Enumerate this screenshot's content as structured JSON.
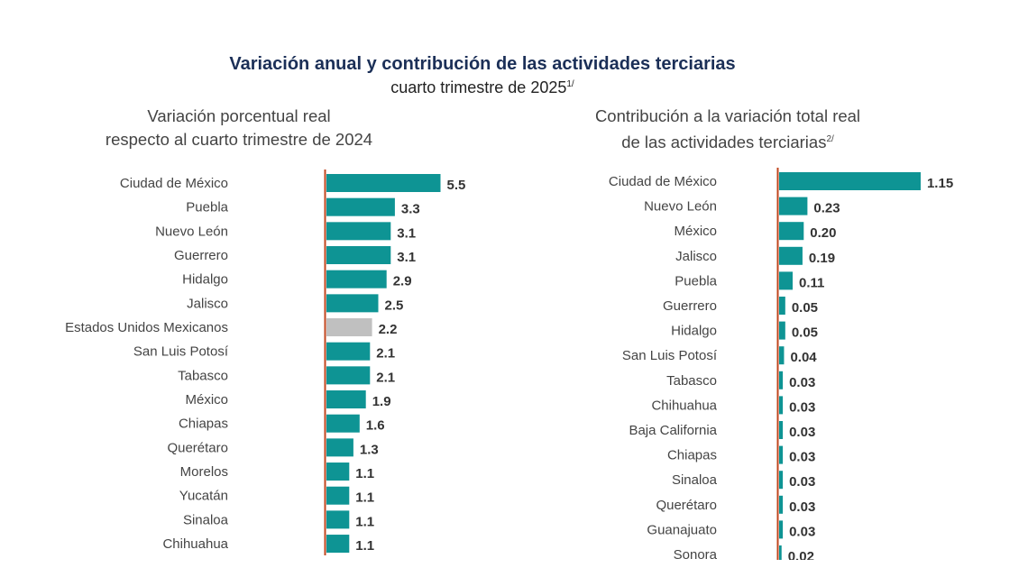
{
  "title": "Variación anual y contribución de las actividades terciarias",
  "subtitle": "cuarto trimestre de 2025",
  "subtitle_note": "1/",
  "colors": {
    "bar": "#0e9494",
    "national_bar": "#c0c0c0",
    "axis": "#c0461e",
    "title": "#1b2f57"
  },
  "chart_data": [
    {
      "type": "bar",
      "orientation": "horizontal",
      "title_line1": "Variación porcentual real",
      "title_line2": "respecto al cuarto trimestre de 2024",
      "categories": [
        "Ciudad de México",
        "Puebla",
        "Nuevo León",
        "Guerrero",
        "Hidalgo",
        "Jalisco",
        "Estados Unidos Mexicanos",
        "San Luis Potosí",
        "Tabasco",
        "México",
        "Chiapas",
        "Querétaro",
        "Morelos",
        "Yucatán",
        "Sinaloa",
        "Chihuahua"
      ],
      "values": [
        5.5,
        3.3,
        3.1,
        3.1,
        2.9,
        2.5,
        2.2,
        2.1,
        2.1,
        1.9,
        1.6,
        1.3,
        1.1,
        1.1,
        1.1,
        1.1
      ],
      "labels": [
        "5.5",
        "3.3",
        "3.1",
        "3.1",
        "2.9",
        "2.5",
        "2.2",
        "2.1",
        "2.1",
        "1.9",
        "1.6",
        "1.3",
        "1.1",
        "1.1",
        "1.1",
        "1.1"
      ],
      "highlight": "Estados Unidos Mexicanos"
    },
    {
      "type": "bar",
      "orientation": "horizontal",
      "title_line1": "Contribución a la variación total real",
      "title_line2": "de las actividades terciarias",
      "title_note": "2/",
      "categories": [
        "Ciudad de México",
        "Nuevo León",
        "México",
        "Jalisco",
        "Puebla",
        "Guerrero",
        "Hidalgo",
        "San Luis Potosí",
        "Tabasco",
        "Chihuahua",
        "Baja California",
        "Chiapas",
        "Sinaloa",
        "Querétaro",
        "Guanajuato",
        "Sonora"
      ],
      "values": [
        1.15,
        0.23,
        0.2,
        0.19,
        0.11,
        0.05,
        0.05,
        0.04,
        0.03,
        0.03,
        0.03,
        0.03,
        0.03,
        0.03,
        0.03,
        0.02
      ],
      "labels": [
        "1.15",
        "0.23",
        "0.20",
        "0.19",
        "0.11",
        "0.05",
        "0.05",
        "0.04",
        "0.03",
        "0.03",
        "0.03",
        "0.03",
        "0.03",
        "0.03",
        "0.03",
        "0.02"
      ]
    }
  ]
}
